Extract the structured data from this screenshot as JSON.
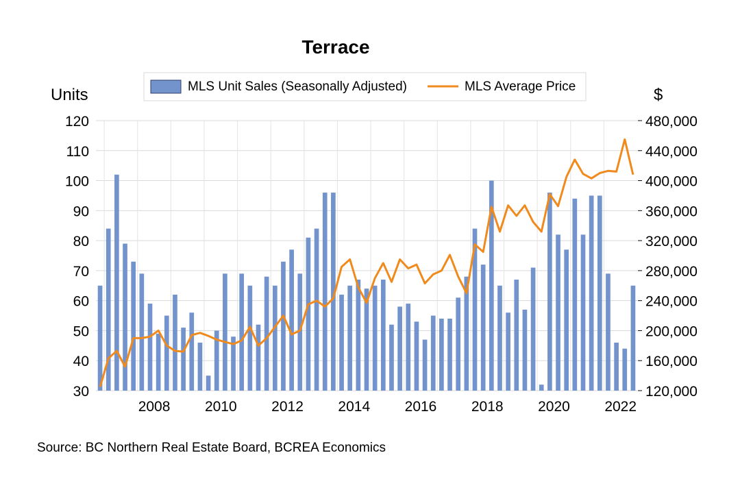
{
  "chart_data": {
    "type": "bar",
    "title": "Terrace",
    "ylabel": "Units",
    "y2label": "$",
    "ylim": [
      30,
      120
    ],
    "y2lim": [
      120000,
      480000
    ],
    "yticks": [
      "30",
      "40",
      "50",
      "60",
      "70",
      "80",
      "90",
      "100",
      "110",
      "120"
    ],
    "y2ticks": [
      "120,000",
      "160,000",
      "200,000",
      "240,000",
      "280,000",
      "320,000",
      "360,000",
      "400,000",
      "440,000",
      "480,000"
    ],
    "xticks": [
      "2008",
      "2010",
      "2012",
      "2014",
      "2016",
      "2018",
      "2020",
      "2022"
    ],
    "legend_position": "top-center",
    "grid": true,
    "x_start_quarter": "2006-Q4",
    "x": [
      "2006-Q4",
      "2007-Q1",
      "2007-Q2",
      "2007-Q3",
      "2007-Q4",
      "2008-Q1",
      "2008-Q2",
      "2008-Q3",
      "2008-Q4",
      "2009-Q1",
      "2009-Q2",
      "2009-Q3",
      "2009-Q4",
      "2010-Q1",
      "2010-Q2",
      "2010-Q3",
      "2010-Q4",
      "2011-Q1",
      "2011-Q2",
      "2011-Q3",
      "2011-Q4",
      "2012-Q1",
      "2012-Q2",
      "2012-Q3",
      "2012-Q4",
      "2013-Q1",
      "2013-Q2",
      "2013-Q3",
      "2013-Q4",
      "2014-Q1",
      "2014-Q2",
      "2014-Q3",
      "2014-Q4",
      "2015-Q1",
      "2015-Q2",
      "2015-Q3",
      "2015-Q4",
      "2016-Q1",
      "2016-Q2",
      "2016-Q3",
      "2016-Q4",
      "2017-Q1",
      "2017-Q2",
      "2017-Q3",
      "2017-Q4",
      "2018-Q1",
      "2018-Q2",
      "2018-Q3",
      "2018-Q4",
      "2019-Q1",
      "2019-Q2",
      "2019-Q3",
      "2019-Q4",
      "2020-Q1",
      "2020-Q2",
      "2020-Q3",
      "2020-Q4",
      "2021-Q1",
      "2021-Q2",
      "2021-Q3",
      "2021-Q4",
      "2022-Q1",
      "2022-Q2",
      "2022-Q3",
      "2022-Q4"
    ],
    "series": [
      {
        "name": "MLS Unit Sales (Seasonally Adjusted)",
        "axis": "left",
        "type": "bar",
        "color": "#7393cd",
        "values": [
          65,
          84,
          102,
          79,
          73,
          69,
          59,
          49,
          55,
          62,
          51,
          56,
          46,
          35,
          50,
          69,
          48,
          69,
          65,
          52,
          68,
          65,
          73,
          77,
          69,
          81,
          84,
          96,
          96,
          62,
          65,
          67,
          64,
          65,
          67,
          52,
          58,
          59,
          53,
          47,
          55,
          54,
          54,
          61,
          68,
          84,
          72,
          100,
          65,
          56,
          67,
          57,
          71,
          32,
          96,
          82,
          77,
          94,
          82,
          95,
          95,
          69,
          46,
          44,
          65
        ]
      },
      {
        "name": "MLS Average Price",
        "axis": "right",
        "type": "line",
        "color": "#f08a1d",
        "values": [
          125000,
          163000,
          173000,
          152000,
          190000,
          190000,
          192000,
          200000,
          180000,
          173000,
          172000,
          194000,
          197000,
          193000,
          188000,
          185000,
          182000,
          187000,
          205000,
          180000,
          190000,
          205000,
          220000,
          195000,
          200000,
          235000,
          240000,
          232000,
          243000,
          285000,
          295000,
          258000,
          237000,
          270000,
          290000,
          265000,
          295000,
          283000,
          288000,
          263000,
          275000,
          280000,
          301000,
          272000,
          250000,
          315000,
          305000,
          365000,
          332000,
          367000,
          353000,
          367000,
          345000,
          332000,
          382000,
          366000,
          405000,
          428000,
          409000,
          403000,
          410000,
          413000,
          412000,
          455000,
          408000
        ]
      }
    ]
  },
  "source_note": "Source:  BC Northern Real Estate Board, BCREA Economics"
}
